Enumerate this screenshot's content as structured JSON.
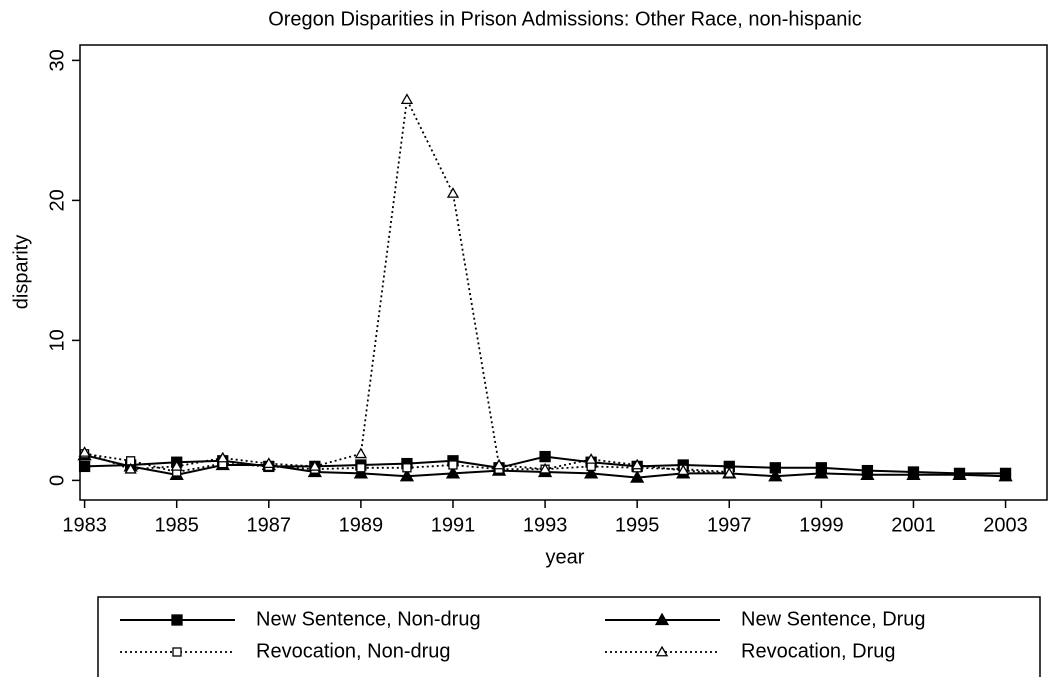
{
  "chart_data": {
    "type": "line",
    "title": "Oregon Disparities in Prison Admissions: Other Race, non-hispanic",
    "x_label": "year",
    "y_label": "disparity",
    "x": [
      1983,
      1984,
      1985,
      1986,
      1987,
      1988,
      1989,
      1990,
      1991,
      1992,
      1993,
      1994,
      1995,
      1996,
      1997,
      1998,
      1999,
      2000,
      2001,
      2002,
      2003
    ],
    "series": [
      {
        "name": "New Sentence, Non-drug",
        "color": "#000000",
        "line_style": "solid",
        "marker": "square",
        "marker_fill": true,
        "values": [
          1.0,
          1.1,
          1.3,
          1.4,
          1.0,
          1.0,
          1.1,
          1.2,
          1.4,
          0.9,
          1.7,
          1.3,
          1.0,
          1.1,
          1.0,
          0.9,
          0.9,
          0.7,
          0.6,
          0.5,
          0.5
        ]
      },
      {
        "name": "New Sentence, Drug",
        "color": "#000000",
        "line_style": "solid",
        "marker": "triangle",
        "marker_fill": true,
        "values": [
          1.8,
          1.0,
          0.4,
          1.1,
          1.1,
          0.6,
          0.5,
          0.3,
          0.5,
          0.7,
          0.6,
          0.5,
          0.2,
          0.5,
          0.5,
          0.3,
          0.5,
          0.4,
          0.4,
          0.4,
          0.3
        ]
      },
      {
        "name": "Revocation, Non-drug",
        "color": "#000000",
        "line_style": "dotted",
        "marker": "square",
        "marker_fill": false,
        "values": [
          1.9,
          1.4,
          0.6,
          1.2,
          1.0,
          0.8,
          0.9,
          0.9,
          1.1,
          0.8,
          0.8,
          1.0,
          0.9,
          0.8,
          0.6,
          null,
          null,
          null,
          null,
          null,
          null
        ]
      },
      {
        "name": "Revocation, Drug",
        "color": "#000000",
        "line_style": "dotted",
        "marker": "triangle",
        "marker_fill": false,
        "values": [
          2.0,
          0.8,
          1.0,
          1.6,
          1.2,
          1.0,
          1.9,
          27.2,
          20.5,
          1.1,
          0.8,
          1.5,
          1.1,
          0.7,
          0.5,
          null,
          null,
          null,
          null,
          null,
          null
        ]
      }
    ],
    "xlim": [
      1982.9,
      2003.9
    ],
    "ylim": [
      -1.4,
      31.1
    ],
    "xticks": [
      1983,
      1985,
      1987,
      1989,
      1991,
      1993,
      1995,
      1997,
      1999,
      2001,
      2003
    ],
    "yticks": [
      0,
      10,
      20,
      30
    ],
    "grid": false,
    "legend": "bottom"
  }
}
